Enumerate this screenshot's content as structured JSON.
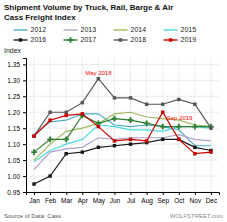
{
  "chart_data": {
    "type": "line",
    "title": "Shipment Volume by Truck, Rail, Barge & Air",
    "subtitle": "Cass Freight Index",
    "y_label": "Index",
    "source": "Source of Data: Cass",
    "watermark": "WOLFSTREET.com",
    "categories": [
      "Jan",
      "Feb",
      "Mar",
      "Apr",
      "May",
      "Jun",
      "Jul",
      "Aug",
      "Sep",
      "Oct",
      "Nov",
      "Dec"
    ],
    "ylim": [
      0.95,
      1.37
    ],
    "yticks": [
      0.95,
      {
        "value": 1.0,
        "label": "1.00"
      },
      1.05,
      {
        "value": 1.1,
        "label": "1.10"
      },
      1.15,
      {
        "value": 1.2,
        "label": "1.20"
      },
      1.25,
      {
        "value": 1.3,
        "label": "1.30"
      },
      1.35
    ],
    "grid": true,
    "legend": "top",
    "annotations": [
      {
        "text": "May 2018",
        "x": "May",
        "y": 1.305,
        "color": "red"
      },
      {
        "text": "Sep 2019",
        "x": "Sep",
        "y": 1.2,
        "color": "red"
      }
    ],
    "series": [
      {
        "name": "2012",
        "color": "#4bacc6",
        "values": [
          1.13,
          1.17,
          1.175,
          1.195,
          1.195,
          1.16,
          1.155,
          1.16,
          1.155,
          1.145,
          1.095,
          1.095
        ]
      },
      {
        "name": "2013",
        "color": "#b0a0cc",
        "values": [
          1.02,
          1.075,
          1.085,
          1.09,
          1.12,
          1.115,
          1.12,
          1.12,
          1.12,
          1.13,
          1.115,
          1.11
        ]
      },
      {
        "name": "2014",
        "color": "#9bbb59",
        "values": [
          1.05,
          1.1,
          1.14,
          1.15,
          1.165,
          1.195,
          1.2,
          1.185,
          1.18,
          1.175,
          1.16,
          1.155
        ]
      },
      {
        "name": "2015",
        "color": "#4dd9d9",
        "values": [
          1.045,
          1.08,
          1.1,
          1.115,
          1.16,
          1.155,
          1.145,
          1.145,
          1.14,
          1.155,
          1.155,
          1.15
        ]
      },
      {
        "name": "2016",
        "color": "#1a1a1a",
        "marker": "square",
        "values": [
          0.975,
          1.0,
          1.07,
          1.075,
          1.09,
          1.095,
          1.1,
          1.105,
          1.115,
          1.115,
          1.09,
          1.08
        ]
      },
      {
        "name": "2017",
        "color": "#2e7d32",
        "marker": "plus",
        "values": [
          1.075,
          1.115,
          1.115,
          1.19,
          1.165,
          1.18,
          1.175,
          1.165,
          1.155,
          1.155,
          1.155,
          1.155
        ]
      },
      {
        "name": "2018",
        "color": "#555555",
        "marker": "square",
        "values": [
          1.125,
          1.2,
          1.2,
          1.23,
          1.305,
          1.245,
          1.245,
          1.225,
          1.225,
          1.24,
          1.225,
          1.15
        ]
      },
      {
        "name": "2019",
        "color": "#cc0000",
        "marker": "square",
        "values": [
          1.125,
          1.175,
          1.19,
          1.195,
          1.155,
          1.11,
          1.115,
          1.11,
          1.2,
          1.115,
          1.07,
          1.075
        ]
      }
    ]
  }
}
